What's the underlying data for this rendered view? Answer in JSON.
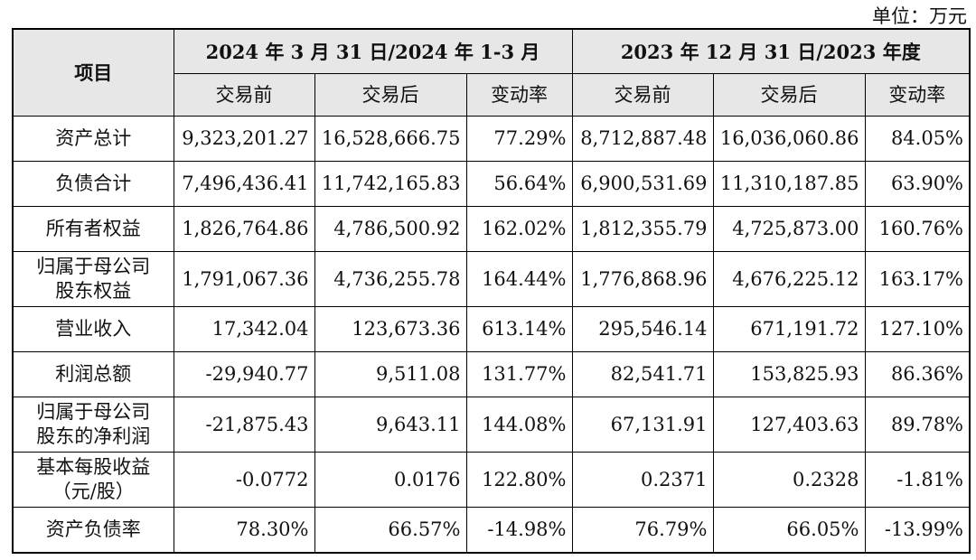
{
  "unit_label": "单位：万元",
  "headers": {
    "item": "项目",
    "period1": "2024 年 3 月 31 日/2024 年 1-3 月",
    "period2": "2023 年 12 月 31 日/2023 年度",
    "sub": [
      "交易前",
      "交易后",
      "变动率",
      "交易前",
      "交易后",
      "变动率"
    ]
  },
  "rows": [
    {
      "label": "资产总计",
      "values": [
        "9,323,201.27",
        "16,528,666.75",
        "77.29%",
        "8,712,887.48",
        "16,036,060.86",
        "84.05%"
      ]
    },
    {
      "label": "负债合计",
      "values": [
        "7,496,436.41",
        "11,742,165.83",
        "56.64%",
        "6,900,531.69",
        "11,310,187.85",
        "63.90%"
      ]
    },
    {
      "label": "所有者权益",
      "values": [
        "1,826,764.86",
        "4,786,500.92",
        "162.02%",
        "1,812,355.79",
        "4,725,873.00",
        "160.76%"
      ]
    },
    {
      "label": "归属于母公司股东权益",
      "label_lines": [
        "归属于母公司",
        "股东权益"
      ],
      "values": [
        "1,791,067.36",
        "4,736,255.78",
        "164.44%",
        "1,776,868.96",
        "4,676,225.12",
        "163.17%"
      ]
    },
    {
      "label": "营业收入",
      "values": [
        "17,342.04",
        "123,673.36",
        "613.14%",
        "295,546.14",
        "671,191.72",
        "127.10%"
      ]
    },
    {
      "label": "利润总额",
      "values": [
        "-29,940.77",
        "9,511.08",
        "131.77%",
        "82,541.71",
        "153,825.93",
        "86.36%"
      ]
    },
    {
      "label": "归属于母公司股东的净利润",
      "label_lines": [
        "归属于母公司",
        "股东的净利润"
      ],
      "values": [
        "-21,875.43",
        "9,643.11",
        "144.08%",
        "67,131.91",
        "127,403.63",
        "89.78%"
      ]
    },
    {
      "label": "基本每股收益（元/股）",
      "label_lines": [
        "基本每股收益",
        "（元/股）"
      ],
      "values": [
        "-0.0772",
        "0.0176",
        "122.80%",
        "0.2371",
        "0.2328",
        "-1.81%"
      ]
    },
    {
      "label": "资产负债率",
      "values": [
        "78.30%",
        "66.57%",
        "-14.98%",
        "76.79%",
        "66.05%",
        "-13.99%"
      ]
    }
  ]
}
